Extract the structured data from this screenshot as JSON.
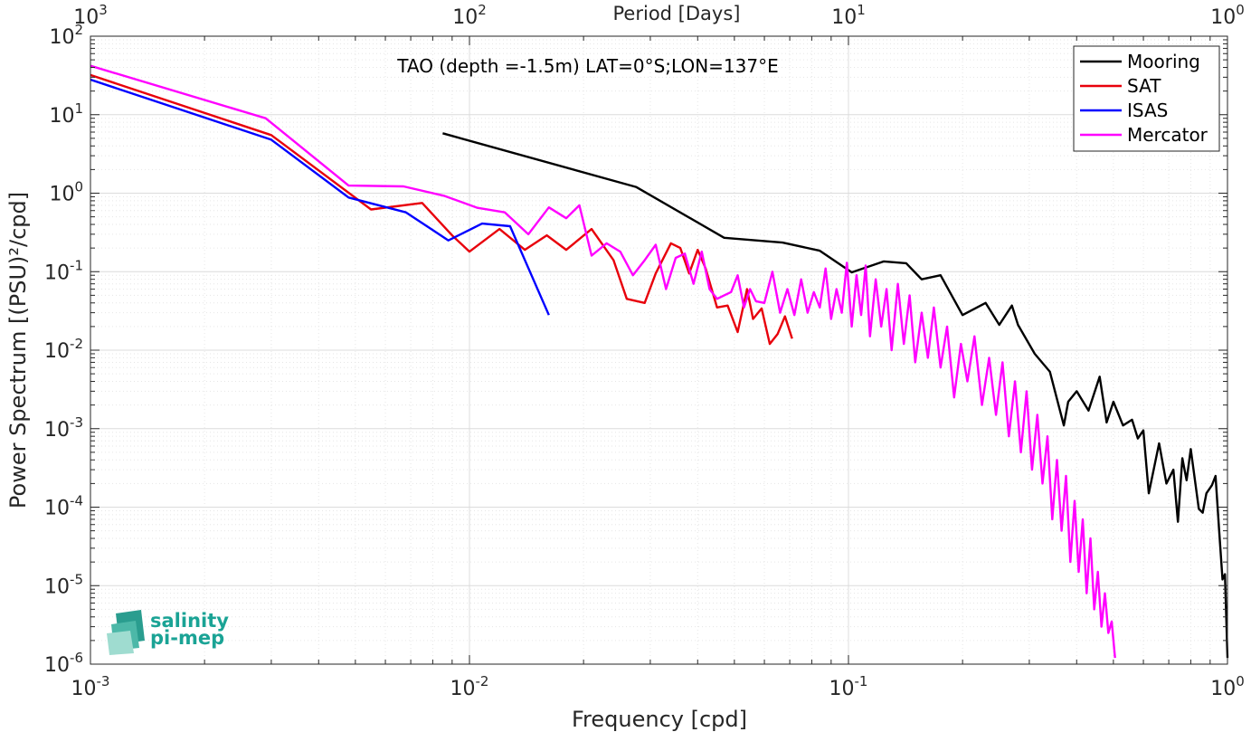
{
  "chart_data": {
    "type": "line",
    "title": "",
    "annotation": "TAO (depth =-1.5m) LAT=0°S;LON=137°E",
    "xlabel": "Frequency [cpd]",
    "ylabel": "Power Spectrum [(PSU)²/cpd]",
    "top_xlabel": "Period [Days]",
    "x_scale": "log",
    "y_scale": "log",
    "xlim": [
      0.001,
      1
    ],
    "ylim": [
      1e-06,
      100
    ],
    "grid": true,
    "legend_position": "top-right",
    "x_ticks": [
      {
        "value": 0.001,
        "base": "10",
        "exp": "-3"
      },
      {
        "value": 0.01,
        "base": "10",
        "exp": "-2"
      },
      {
        "value": 0.1,
        "base": "10",
        "exp": "-1"
      },
      {
        "value": 1,
        "base": "10",
        "exp": "0"
      }
    ],
    "top_ticks": [
      {
        "value": 0.001,
        "base": "10",
        "exp": "3"
      },
      {
        "value": 0.01,
        "base": "10",
        "exp": "2"
      },
      {
        "value": 0.1,
        "base": "10",
        "exp": "1"
      },
      {
        "value": 1,
        "base": "10",
        "exp": "0"
      }
    ],
    "y_ticks": [
      {
        "value": 100,
        "base": "10",
        "exp": "2"
      },
      {
        "value": 10,
        "base": "10",
        "exp": "1"
      },
      {
        "value": 1,
        "base": "10",
        "exp": "0"
      },
      {
        "value": 0.1,
        "base": "10",
        "exp": "-1"
      },
      {
        "value": 0.01,
        "base": "10",
        "exp": "-2"
      },
      {
        "value": 0.001,
        "base": "10",
        "exp": "-3"
      },
      {
        "value": 0.0001,
        "base": "10",
        "exp": "-4"
      },
      {
        "value": 1e-05,
        "base": "10",
        "exp": "-5"
      },
      {
        "value": 1e-06,
        "base": "10",
        "exp": "-6"
      }
    ],
    "series": [
      {
        "name": "Mooring",
        "color": "#000000",
        "x": [
          0.0085,
          0.0275,
          0.047,
          0.067,
          0.084,
          0.102,
          0.124,
          0.142,
          0.156,
          0.175,
          0.2,
          0.23,
          0.25,
          0.27,
          0.28,
          0.31,
          0.34,
          0.37,
          0.38,
          0.4,
          0.43,
          0.46,
          0.48,
          0.5,
          0.53,
          0.56,
          0.58,
          0.6,
          0.62,
          0.66,
          0.69,
          0.72,
          0.74,
          0.76,
          0.78,
          0.8,
          0.84,
          0.86,
          0.88,
          0.91,
          0.93,
          0.95,
          0.97,
          0.985,
          1.0
        ],
        "y": [
          5.8,
          1.2,
          0.27,
          0.235,
          0.185,
          0.098,
          0.135,
          0.128,
          0.08,
          0.09,
          0.028,
          0.04,
          0.021,
          0.037,
          0.021,
          0.009,
          0.0053,
          0.0011,
          0.0022,
          0.003,
          0.0017,
          0.0046,
          0.0012,
          0.0022,
          0.0011,
          0.0013,
          0.00075,
          0.00095,
          0.00015,
          0.00065,
          0.0002,
          0.0003,
          6.5e-05,
          0.00042,
          0.00022,
          0.00055,
          9.5e-05,
          8.5e-05,
          0.00015,
          0.00019,
          0.00025,
          5.2e-05,
          1.2e-05,
          1.4e-05,
          1.2e-06
        ]
      },
      {
        "name": "SAT",
        "color": "#e8000b",
        "x": [
          0.001,
          0.003,
          0.0055,
          0.0075,
          0.009,
          0.01,
          0.012,
          0.014,
          0.016,
          0.018,
          0.021,
          0.024,
          0.026,
          0.029,
          0.031,
          0.034,
          0.036,
          0.038,
          0.04,
          0.042,
          0.045,
          0.048,
          0.051,
          0.054,
          0.056,
          0.059,
          0.062,
          0.065,
          0.068,
          0.071
        ],
        "y": [
          32,
          5.5,
          0.62,
          0.75,
          0.29,
          0.18,
          0.35,
          0.19,
          0.29,
          0.19,
          0.35,
          0.14,
          0.045,
          0.04,
          0.095,
          0.23,
          0.2,
          0.095,
          0.19,
          0.11,
          0.035,
          0.037,
          0.017,
          0.06,
          0.025,
          0.034,
          0.012,
          0.016,
          0.027,
          0.014
        ]
      },
      {
        "name": "ISAS",
        "color": "#0000ff",
        "x": [
          0.001,
          0.003,
          0.0048,
          0.0068,
          0.0088,
          0.0108,
          0.0128,
          0.0162
        ],
        "y": [
          28,
          4.8,
          0.88,
          0.57,
          0.25,
          0.41,
          0.38,
          0.028
        ]
      },
      {
        "name": "Mercator",
        "color": "#ff00ff",
        "x": [
          0.001,
          0.0029,
          0.0048,
          0.0067,
          0.0086,
          0.0105,
          0.0124,
          0.0143,
          0.0162,
          0.018,
          0.0195,
          0.021,
          0.023,
          0.025,
          0.027,
          0.029,
          0.031,
          0.033,
          0.035,
          0.037,
          0.039,
          0.041,
          0.043,
          0.045,
          0.047,
          0.049,
          0.051,
          0.053,
          0.055,
          0.057,
          0.06,
          0.063,
          0.066,
          0.069,
          0.072,
          0.075,
          0.078,
          0.081,
          0.084,
          0.087,
          0.09,
          0.093,
          0.096,
          0.099,
          0.102,
          0.105,
          0.108,
          0.111,
          0.114,
          0.118,
          0.122,
          0.126,
          0.13,
          0.135,
          0.14,
          0.145,
          0.15,
          0.156,
          0.162,
          0.168,
          0.175,
          0.182,
          0.19,
          0.198,
          0.206,
          0.215,
          0.225,
          0.235,
          0.245,
          0.255,
          0.265,
          0.275,
          0.285,
          0.295,
          0.305,
          0.315,
          0.325,
          0.335,
          0.345,
          0.355,
          0.365,
          0.375,
          0.385,
          0.395,
          0.405,
          0.415,
          0.425,
          0.435,
          0.445,
          0.455,
          0.465,
          0.475,
          0.485,
          0.495,
          0.505
        ],
        "y": [
          42,
          9,
          1.25,
          1.22,
          0.92,
          0.65,
          0.57,
          0.3,
          0.66,
          0.48,
          0.7,
          0.16,
          0.23,
          0.18,
          0.09,
          0.14,
          0.22,
          0.06,
          0.15,
          0.17,
          0.07,
          0.18,
          0.06,
          0.045,
          0.05,
          0.055,
          0.09,
          0.035,
          0.06,
          0.042,
          0.04,
          0.1,
          0.03,
          0.06,
          0.028,
          0.08,
          0.03,
          0.055,
          0.035,
          0.11,
          0.025,
          0.06,
          0.03,
          0.13,
          0.02,
          0.09,
          0.028,
          0.12,
          0.015,
          0.08,
          0.02,
          0.06,
          0.01,
          0.07,
          0.012,
          0.05,
          0.007,
          0.03,
          0.008,
          0.035,
          0.006,
          0.02,
          0.0025,
          0.012,
          0.004,
          0.015,
          0.002,
          0.008,
          0.0015,
          0.007,
          0.0008,
          0.004,
          0.0005,
          0.003,
          0.0003,
          0.0015,
          0.0002,
          0.0008,
          7e-05,
          0.0004,
          5e-05,
          0.00025,
          2e-05,
          0.00012,
          1.5e-05,
          7e-05,
          8e-06,
          4e-05,
          5e-06,
          1.5e-05,
          3e-06,
          8e-06,
          2.5e-06,
          3.5e-06,
          1.2e-06
        ]
      }
    ]
  },
  "logo": {
    "line1": "salinity",
    "line2": "pi-mep"
  }
}
